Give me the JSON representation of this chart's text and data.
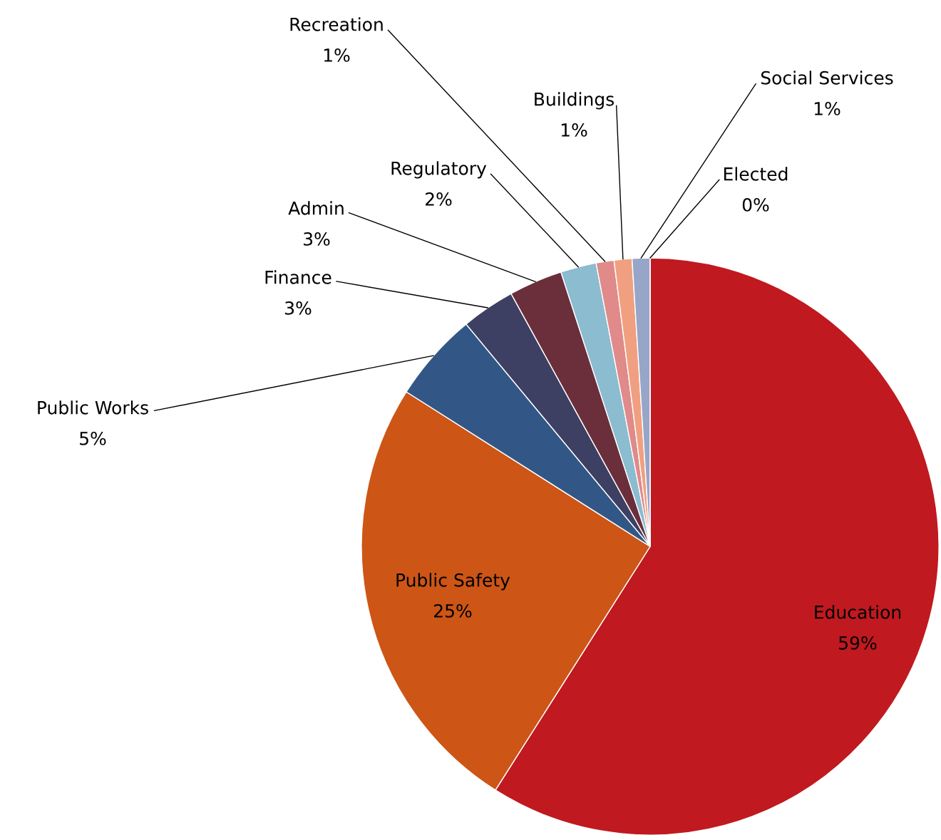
{
  "chart_data": {
    "type": "pie",
    "categories": [
      "Education",
      "Public Safety",
      "Public Works",
      "Finance",
      "Admin",
      "Regulatory",
      "Recreation",
      "Buildings",
      "Social Services",
      "Elected"
    ],
    "values": [
      59,
      25,
      5,
      3,
      3,
      2,
      1,
      1,
      1,
      0
    ],
    "colors": [
      "#c0191f",
      "#cd5516",
      "#325787",
      "#3d3f63",
      "#6b2f3b",
      "#8bbcd0",
      "#e08a8a",
      "#f0a080",
      "#97a5c8",
      "#6a7ab0"
    ],
    "value_labels": [
      "59%",
      "25%",
      "5%",
      "3%",
      "3%",
      "2%",
      "1%",
      "1%",
      "1%",
      "0%"
    ],
    "legend": false
  }
}
